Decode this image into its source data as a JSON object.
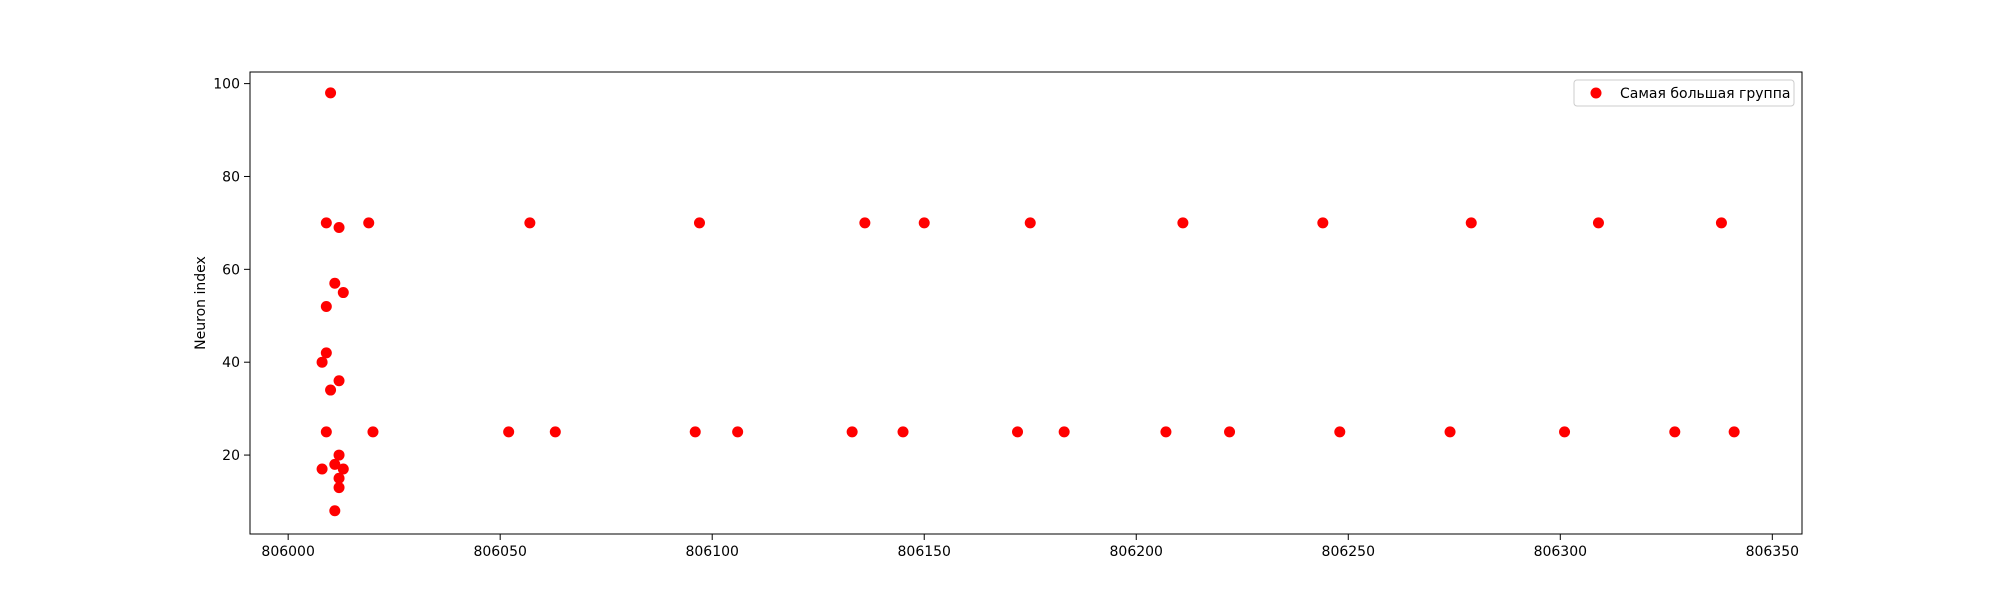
{
  "chart_data": {
    "type": "scatter",
    "title": "",
    "xlabel": "",
    "ylabel": "Neuron index",
    "xlim": [
      805991,
      806357
    ],
    "ylim": [
      3,
      102.5
    ],
    "xticks": [
      806000,
      806050,
      806100,
      806150,
      806200,
      806250,
      806300,
      806350
    ],
    "yticks": [
      20,
      40,
      60,
      80,
      100
    ],
    "grid": false,
    "legend_position": "top-right",
    "series": [
      {
        "name": "Самая большая группа",
        "color": "#ff0000",
        "marker": "circle",
        "x": [
          806010,
          806009,
          806012,
          806019,
          806057,
          806097,
          806136,
          806150,
          806175,
          806211,
          806244,
          806279,
          806309,
          806338,
          806011,
          806013,
          806009,
          806009,
          806008,
          806012,
          806010,
          806009,
          806020,
          806052,
          806063,
          806096,
          806106,
          806133,
          806145,
          806172,
          806183,
          806207,
          806222,
          806248,
          806274,
          806301,
          806327,
          806341,
          806012,
          806011,
          806008,
          806013,
          806012,
          806012,
          806011
        ],
        "y": [
          98,
          70,
          69,
          70,
          70,
          70,
          70,
          70,
          70,
          70,
          70,
          70,
          70,
          70,
          57,
          55,
          52,
          42,
          40,
          36,
          34,
          25,
          25,
          25,
          25,
          25,
          25,
          25,
          25,
          25,
          25,
          25,
          25,
          25,
          25,
          25,
          25,
          25,
          20,
          18,
          17,
          17,
          15,
          13,
          8
        ]
      }
    ]
  }
}
